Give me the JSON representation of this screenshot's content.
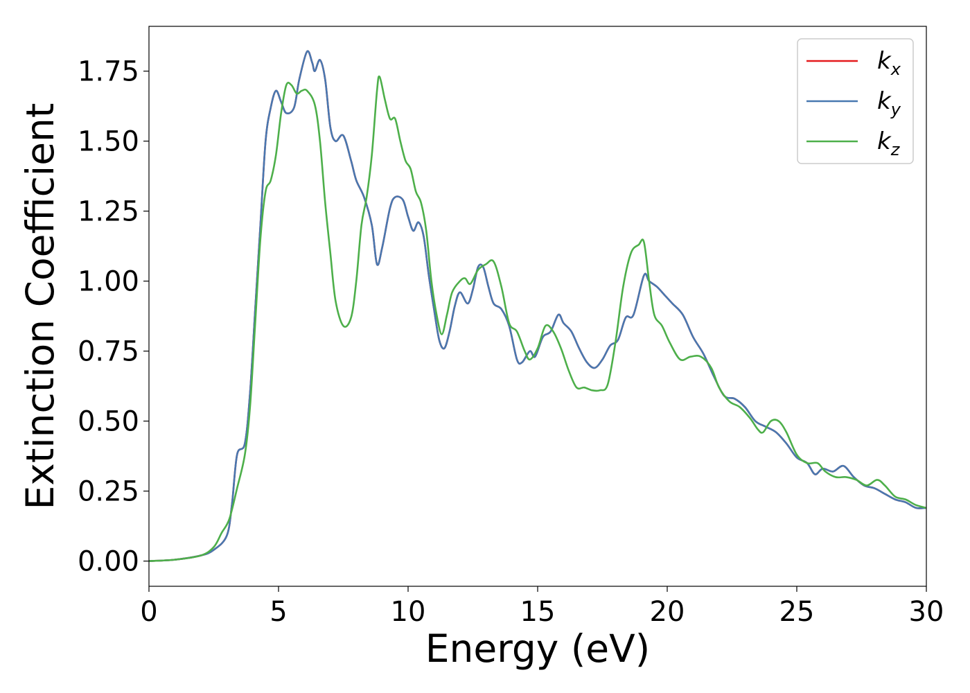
{
  "chart_data": {
    "type": "line",
    "title": "",
    "xlabel": "Energy (eV)",
    "ylabel": "Extinction Coefficient",
    "xlim": [
      0,
      30
    ],
    "ylim": [
      -0.09,
      1.91
    ],
    "xticks": [
      "0",
      "5",
      "10",
      "15",
      "20",
      "25",
      "30"
    ],
    "xtick_values": [
      0,
      5,
      10,
      15,
      20,
      25,
      30
    ],
    "yticks": [
      "0.00",
      "0.25",
      "0.50",
      "0.75",
      "1.00",
      "1.25",
      "1.50",
      "1.75"
    ],
    "ytick_values": [
      0,
      0.25,
      0.5,
      0.75,
      1.0,
      1.25,
      1.5,
      1.75
    ],
    "grid": false,
    "legend_position": "top-right",
    "series": [
      {
        "name": "k",
        "subscript": "x",
        "color": "#e41a1c",
        "points": [
          [
            0,
            0
          ],
          [
            1,
            0.005
          ],
          [
            2,
            0.02
          ],
          [
            2.5,
            0.04
          ],
          [
            3,
            0.09
          ],
          [
            3.2,
            0.2
          ],
          [
            3.4,
            0.38
          ],
          [
            3.7,
            0.42
          ],
          [
            3.9,
            0.6
          ],
          [
            4.1,
            0.9
          ],
          [
            4.3,
            1.2
          ],
          [
            4.5,
            1.5
          ],
          [
            4.7,
            1.62
          ],
          [
            4.9,
            1.68
          ],
          [
            5.1,
            1.64
          ],
          [
            5.3,
            1.6
          ],
          [
            5.6,
            1.62
          ],
          [
            5.8,
            1.72
          ],
          [
            6.1,
            1.82
          ],
          [
            6.3,
            1.78
          ],
          [
            6.4,
            1.75
          ],
          [
            6.6,
            1.79
          ],
          [
            6.8,
            1.72
          ],
          [
            7.0,
            1.55
          ],
          [
            7.2,
            1.5
          ],
          [
            7.5,
            1.52
          ],
          [
            7.8,
            1.43
          ],
          [
            8.0,
            1.36
          ],
          [
            8.3,
            1.3
          ],
          [
            8.6,
            1.2
          ],
          [
            8.8,
            1.06
          ],
          [
            9.0,
            1.12
          ],
          [
            9.3,
            1.26
          ],
          [
            9.5,
            1.3
          ],
          [
            9.8,
            1.29
          ],
          [
            10.0,
            1.23
          ],
          [
            10.2,
            1.18
          ],
          [
            10.4,
            1.21
          ],
          [
            10.6,
            1.16
          ],
          [
            10.8,
            1.02
          ],
          [
            11.0,
            0.9
          ],
          [
            11.2,
            0.79
          ],
          [
            11.4,
            0.76
          ],
          [
            11.6,
            0.82
          ],
          [
            11.8,
            0.91
          ],
          [
            12.0,
            0.96
          ],
          [
            12.3,
            0.92
          ],
          [
            12.5,
            0.97
          ],
          [
            12.7,
            1.05
          ],
          [
            12.9,
            1.05
          ],
          [
            13.1,
            0.98
          ],
          [
            13.3,
            0.92
          ],
          [
            13.6,
            0.9
          ],
          [
            13.9,
            0.84
          ],
          [
            14.2,
            0.72
          ],
          [
            14.4,
            0.71
          ],
          [
            14.7,
            0.75
          ],
          [
            14.9,
            0.73
          ],
          [
            15.2,
            0.8
          ],
          [
            15.5,
            0.82
          ],
          [
            15.8,
            0.88
          ],
          [
            16.0,
            0.85
          ],
          [
            16.3,
            0.82
          ],
          [
            16.6,
            0.76
          ],
          [
            16.9,
            0.71
          ],
          [
            17.2,
            0.69
          ],
          [
            17.5,
            0.72
          ],
          [
            17.8,
            0.77
          ],
          [
            18.1,
            0.79
          ],
          [
            18.4,
            0.87
          ],
          [
            18.7,
            0.88
          ],
          [
            19.1,
            1.02
          ],
          [
            19.3,
            1.0
          ],
          [
            19.6,
            0.98
          ],
          [
            19.9,
            0.95
          ],
          [
            20.2,
            0.92
          ],
          [
            20.6,
            0.88
          ],
          [
            21.0,
            0.8
          ],
          [
            21.4,
            0.74
          ],
          [
            21.8,
            0.66
          ],
          [
            22.2,
            0.59
          ],
          [
            22.6,
            0.58
          ],
          [
            23.0,
            0.55
          ],
          [
            23.4,
            0.5
          ],
          [
            23.8,
            0.48
          ],
          [
            24.2,
            0.46
          ],
          [
            24.6,
            0.42
          ],
          [
            25.0,
            0.37
          ],
          [
            25.4,
            0.35
          ],
          [
            25.7,
            0.31
          ],
          [
            26.0,
            0.33
          ],
          [
            26.4,
            0.32
          ],
          [
            26.8,
            0.34
          ],
          [
            27.2,
            0.3
          ],
          [
            27.6,
            0.27
          ],
          [
            28.0,
            0.26
          ],
          [
            28.4,
            0.24
          ],
          [
            28.8,
            0.22
          ],
          [
            29.2,
            0.21
          ],
          [
            29.6,
            0.19
          ],
          [
            30.0,
            0.19
          ]
        ]
      },
      {
        "name": "k",
        "subscript": "y",
        "color": "#4878b0",
        "points": [
          [
            0,
            0
          ],
          [
            1,
            0.005
          ],
          [
            2,
            0.02
          ],
          [
            2.5,
            0.04
          ],
          [
            3,
            0.09
          ],
          [
            3.2,
            0.2
          ],
          [
            3.4,
            0.38
          ],
          [
            3.7,
            0.42
          ],
          [
            3.9,
            0.6
          ],
          [
            4.1,
            0.9
          ],
          [
            4.3,
            1.2
          ],
          [
            4.5,
            1.5
          ],
          [
            4.7,
            1.62
          ],
          [
            4.9,
            1.68
          ],
          [
            5.1,
            1.64
          ],
          [
            5.3,
            1.6
          ],
          [
            5.6,
            1.62
          ],
          [
            5.8,
            1.72
          ],
          [
            6.1,
            1.82
          ],
          [
            6.3,
            1.78
          ],
          [
            6.4,
            1.75
          ],
          [
            6.6,
            1.79
          ],
          [
            6.8,
            1.72
          ],
          [
            7.0,
            1.55
          ],
          [
            7.2,
            1.5
          ],
          [
            7.5,
            1.52
          ],
          [
            7.8,
            1.43
          ],
          [
            8.0,
            1.36
          ],
          [
            8.3,
            1.3
          ],
          [
            8.6,
            1.2
          ],
          [
            8.8,
            1.06
          ],
          [
            9.0,
            1.12
          ],
          [
            9.3,
            1.26
          ],
          [
            9.5,
            1.3
          ],
          [
            9.8,
            1.29
          ],
          [
            10.0,
            1.23
          ],
          [
            10.2,
            1.18
          ],
          [
            10.4,
            1.21
          ],
          [
            10.6,
            1.16
          ],
          [
            10.8,
            1.02
          ],
          [
            11.0,
            0.9
          ],
          [
            11.2,
            0.79
          ],
          [
            11.4,
            0.76
          ],
          [
            11.6,
            0.82
          ],
          [
            11.8,
            0.91
          ],
          [
            12.0,
            0.96
          ],
          [
            12.3,
            0.92
          ],
          [
            12.5,
            0.97
          ],
          [
            12.7,
            1.05
          ],
          [
            12.9,
            1.05
          ],
          [
            13.1,
            0.98
          ],
          [
            13.3,
            0.92
          ],
          [
            13.6,
            0.9
          ],
          [
            13.9,
            0.84
          ],
          [
            14.2,
            0.72
          ],
          [
            14.4,
            0.71
          ],
          [
            14.7,
            0.75
          ],
          [
            14.9,
            0.73
          ],
          [
            15.2,
            0.8
          ],
          [
            15.5,
            0.82
          ],
          [
            15.8,
            0.88
          ],
          [
            16.0,
            0.85
          ],
          [
            16.3,
            0.82
          ],
          [
            16.6,
            0.76
          ],
          [
            16.9,
            0.71
          ],
          [
            17.2,
            0.69
          ],
          [
            17.5,
            0.72
          ],
          [
            17.8,
            0.77
          ],
          [
            18.1,
            0.79
          ],
          [
            18.4,
            0.87
          ],
          [
            18.7,
            0.88
          ],
          [
            19.1,
            1.02
          ],
          [
            19.3,
            1.0
          ],
          [
            19.6,
            0.98
          ],
          [
            19.9,
            0.95
          ],
          [
            20.2,
            0.92
          ],
          [
            20.6,
            0.88
          ],
          [
            21.0,
            0.8
          ],
          [
            21.4,
            0.74
          ],
          [
            21.8,
            0.66
          ],
          [
            22.2,
            0.59
          ],
          [
            22.6,
            0.58
          ],
          [
            23.0,
            0.55
          ],
          [
            23.4,
            0.5
          ],
          [
            23.8,
            0.48
          ],
          [
            24.2,
            0.46
          ],
          [
            24.6,
            0.42
          ],
          [
            25.0,
            0.37
          ],
          [
            25.4,
            0.35
          ],
          [
            25.7,
            0.31
          ],
          [
            26.0,
            0.33
          ],
          [
            26.4,
            0.32
          ],
          [
            26.8,
            0.34
          ],
          [
            27.2,
            0.3
          ],
          [
            27.6,
            0.27
          ],
          [
            28.0,
            0.26
          ],
          [
            28.4,
            0.24
          ],
          [
            28.8,
            0.22
          ],
          [
            29.2,
            0.21
          ],
          [
            29.6,
            0.19
          ],
          [
            30.0,
            0.19
          ]
        ]
      },
      {
        "name": "k",
        "subscript": "z",
        "color": "#4daf4a",
        "points": [
          [
            0,
            0
          ],
          [
            1,
            0.005
          ],
          [
            2,
            0.02
          ],
          [
            2.5,
            0.05
          ],
          [
            2.8,
            0.1
          ],
          [
            3.1,
            0.15
          ],
          [
            3.4,
            0.26
          ],
          [
            3.7,
            0.38
          ],
          [
            3.9,
            0.55
          ],
          [
            4.1,
            0.85
          ],
          [
            4.3,
            1.15
          ],
          [
            4.5,
            1.32
          ],
          [
            4.7,
            1.36
          ],
          [
            4.9,
            1.45
          ],
          [
            5.1,
            1.6
          ],
          [
            5.3,
            1.7
          ],
          [
            5.5,
            1.7
          ],
          [
            5.7,
            1.67
          ],
          [
            5.9,
            1.68
          ],
          [
            6.1,
            1.68
          ],
          [
            6.4,
            1.63
          ],
          [
            6.6,
            1.5
          ],
          [
            6.8,
            1.28
          ],
          [
            7.0,
            1.1
          ],
          [
            7.2,
            0.93
          ],
          [
            7.5,
            0.84
          ],
          [
            7.8,
            0.87
          ],
          [
            8.0,
            1.0
          ],
          [
            8.2,
            1.2
          ],
          [
            8.4,
            1.3
          ],
          [
            8.6,
            1.45
          ],
          [
            8.8,
            1.68
          ],
          [
            8.9,
            1.73
          ],
          [
            9.1,
            1.65
          ],
          [
            9.3,
            1.58
          ],
          [
            9.5,
            1.58
          ],
          [
            9.7,
            1.5
          ],
          [
            9.9,
            1.43
          ],
          [
            10.1,
            1.4
          ],
          [
            10.3,
            1.32
          ],
          [
            10.5,
            1.28
          ],
          [
            10.7,
            1.18
          ],
          [
            10.9,
            1.0
          ],
          [
            11.1,
            0.88
          ],
          [
            11.3,
            0.81
          ],
          [
            11.5,
            0.88
          ],
          [
            11.7,
            0.96
          ],
          [
            12.0,
            1.0
          ],
          [
            12.2,
            1.01
          ],
          [
            12.4,
            0.99
          ],
          [
            12.7,
            1.04
          ],
          [
            13.0,
            1.06
          ],
          [
            13.3,
            1.07
          ],
          [
            13.6,
            0.98
          ],
          [
            13.9,
            0.85
          ],
          [
            14.2,
            0.82
          ],
          [
            14.5,
            0.75
          ],
          [
            14.7,
            0.72
          ],
          [
            15.0,
            0.76
          ],
          [
            15.3,
            0.84
          ],
          [
            15.6,
            0.82
          ],
          [
            15.9,
            0.76
          ],
          [
            16.2,
            0.68
          ],
          [
            16.5,
            0.62
          ],
          [
            16.8,
            0.62
          ],
          [
            17.1,
            0.61
          ],
          [
            17.4,
            0.61
          ],
          [
            17.7,
            0.63
          ],
          [
            18.0,
            0.78
          ],
          [
            18.3,
            0.98
          ],
          [
            18.6,
            1.1
          ],
          [
            18.9,
            1.13
          ],
          [
            19.1,
            1.14
          ],
          [
            19.3,
            1.0
          ],
          [
            19.5,
            0.88
          ],
          [
            19.8,
            0.84
          ],
          [
            20.1,
            0.78
          ],
          [
            20.5,
            0.72
          ],
          [
            20.9,
            0.73
          ],
          [
            21.3,
            0.73
          ],
          [
            21.7,
            0.69
          ],
          [
            22.0,
            0.62
          ],
          [
            22.4,
            0.57
          ],
          [
            22.8,
            0.55
          ],
          [
            23.2,
            0.51
          ],
          [
            23.5,
            0.47
          ],
          [
            23.7,
            0.46
          ],
          [
            24.0,
            0.5
          ],
          [
            24.3,
            0.5
          ],
          [
            24.6,
            0.46
          ],
          [
            25.0,
            0.38
          ],
          [
            25.4,
            0.35
          ],
          [
            25.8,
            0.35
          ],
          [
            26.1,
            0.32
          ],
          [
            26.5,
            0.3
          ],
          [
            26.9,
            0.3
          ],
          [
            27.3,
            0.29
          ],
          [
            27.7,
            0.27
          ],
          [
            28.1,
            0.29
          ],
          [
            28.4,
            0.27
          ],
          [
            28.8,
            0.23
          ],
          [
            29.2,
            0.22
          ],
          [
            29.6,
            0.2
          ],
          [
            30.0,
            0.19
          ]
        ]
      }
    ]
  }
}
